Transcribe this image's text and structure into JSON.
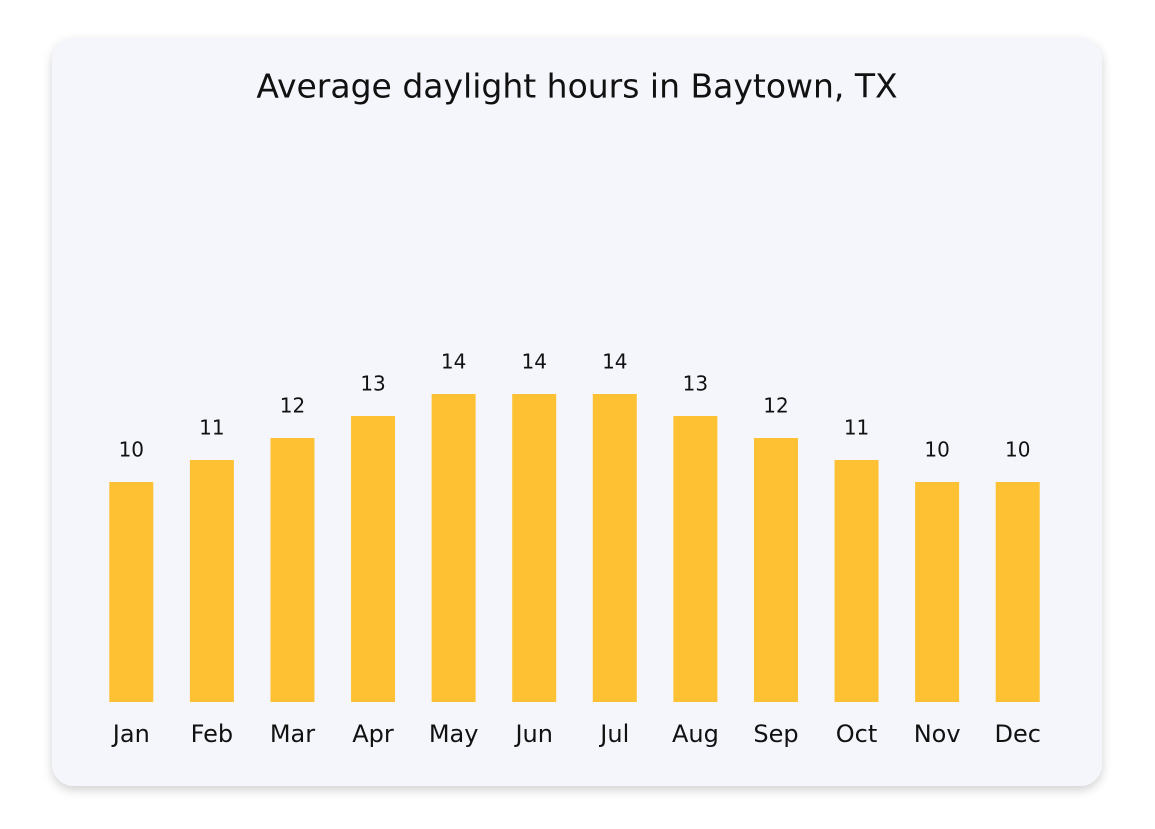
{
  "chart_data": {
    "type": "bar",
    "title": "Average daylight hours in Baytown, TX",
    "categories": [
      "Jan",
      "Feb",
      "Mar",
      "Apr",
      "May",
      "Jun",
      "Jul",
      "Aug",
      "Sep",
      "Oct",
      "Nov",
      "Dec"
    ],
    "values": [
      10,
      11,
      12,
      13,
      14,
      14,
      14,
      13,
      12,
      11,
      10,
      10
    ],
    "color": "#fdc133"
  }
}
